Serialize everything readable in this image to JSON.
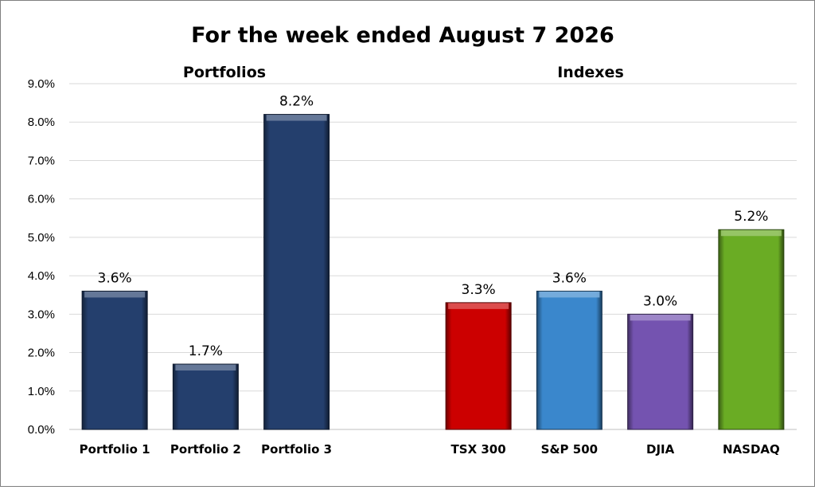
{
  "chart_data": {
    "type": "bar",
    "title": "For the week ended August 7 2026",
    "ylim": [
      0,
      9
    ],
    "yticks": [
      "0.0%",
      "1.0%",
      "2.0%",
      "3.0%",
      "4.0%",
      "5.0%",
      "6.0%",
      "7.0%",
      "8.0%",
      "9.0%"
    ],
    "grid": true,
    "groups": [
      {
        "title": "Portfolios",
        "categories": [
          "Portfolio 1",
          "Portfolio 2",
          "Portfolio 3"
        ],
        "values": [
          3.6,
          1.7,
          8.2
        ],
        "labels": [
          "3.6%",
          "1.7%",
          "8.2%"
        ],
        "colors": [
          "#243f6d",
          "#243f6d",
          "#243f6d"
        ]
      },
      {
        "title": "Indexes",
        "categories": [
          "TSX 300",
          "S&P 500",
          "DJIA",
          "NASDAQ"
        ],
        "values": [
          3.3,
          3.6,
          3.0,
          5.2
        ],
        "labels": [
          "3.3%",
          "3.6%",
          "3.0%",
          "5.2%"
        ],
        "colors": [
          "#cc0000",
          "#3a87cc",
          "#7453b0",
          "#6aac24"
        ]
      }
    ]
  }
}
